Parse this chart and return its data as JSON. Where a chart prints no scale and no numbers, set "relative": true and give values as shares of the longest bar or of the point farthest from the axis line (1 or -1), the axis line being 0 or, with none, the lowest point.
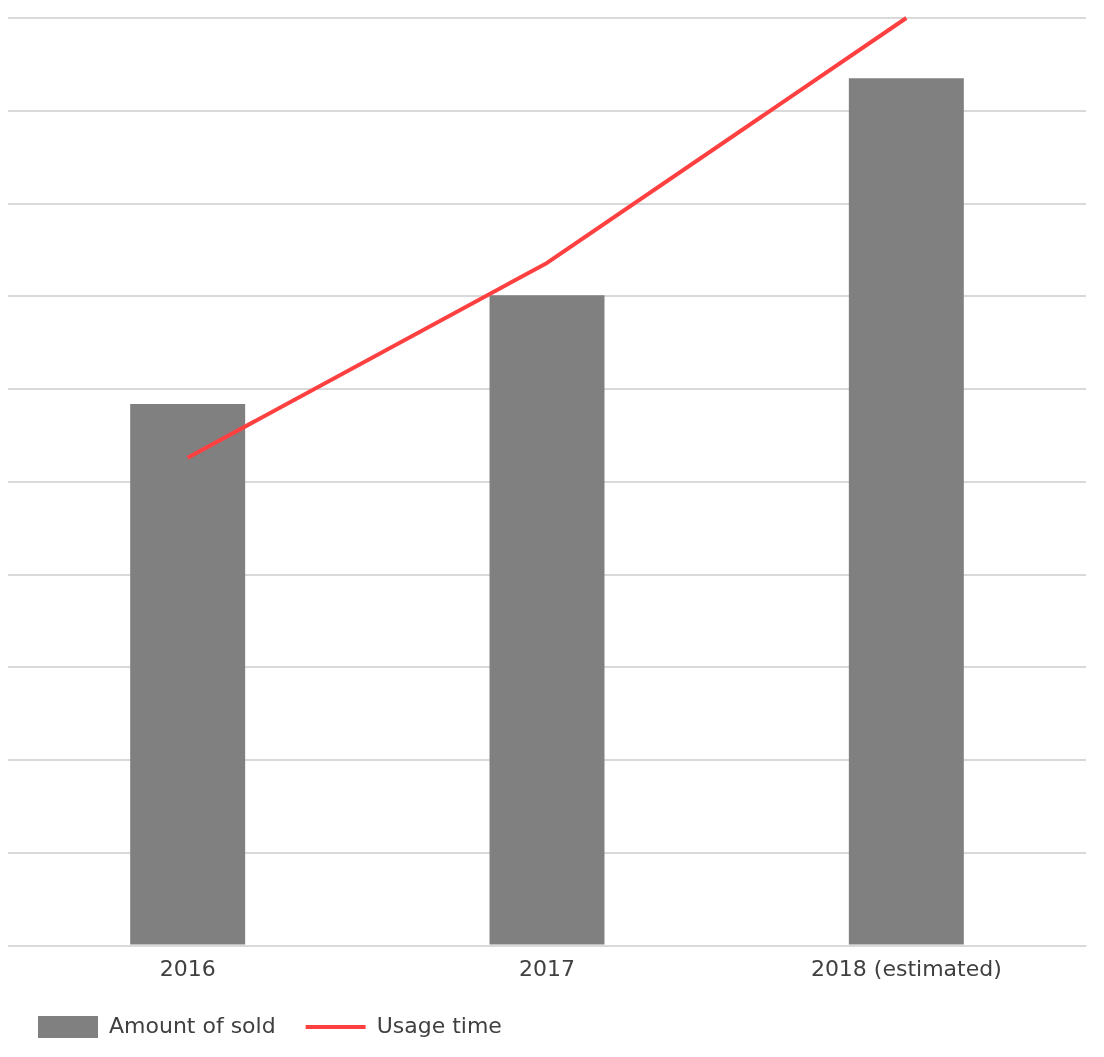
{
  "chart_data": {
    "type": "bar",
    "relative": true,
    "categories": [
      "2016",
      "2017",
      "2018 (estimated)"
    ],
    "series": [
      {
        "name": "Amount of sold",
        "color": "#808080",
        "values": [
          0.584,
          0.701,
          0.935
        ]
      },
      {
        "name": "Usage time",
        "type": "line",
        "color": "#ff4040",
        "values": [
          0.526,
          0.736,
          1
        ]
      }
    ],
    "grid": "y",
    "legend": "bottom",
    "marker": "none"
  }
}
